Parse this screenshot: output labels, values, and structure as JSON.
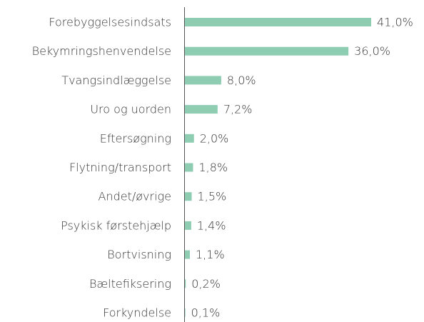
{
  "chart_data": {
    "type": "bar",
    "orientation": "horizontal",
    "color": "#8ecdb2",
    "categories": [
      "Forebyggelsesindsats",
      "Bekymringshenvendelse",
      "Tvangsindlæggelse",
      "Uro og uorden",
      "Eftersøgning",
      "Flytning/transport",
      "Andet/øvrige",
      "Psykisk førstehjælp",
      "Bortvisning",
      "Bæltefiksering",
      "Forkyndelse"
    ],
    "values": [
      41.0,
      36.0,
      8.0,
      7.2,
      2.0,
      1.8,
      1.5,
      1.4,
      1.1,
      0.2,
      0.1
    ],
    "value_labels": [
      "41,0%",
      "36,0%",
      "8,0%",
      "7,2%",
      "2,0%",
      "1,8%",
      "1,5%",
      "1,4%",
      "1,1%",
      "0,2%",
      "0,1%"
    ]
  }
}
